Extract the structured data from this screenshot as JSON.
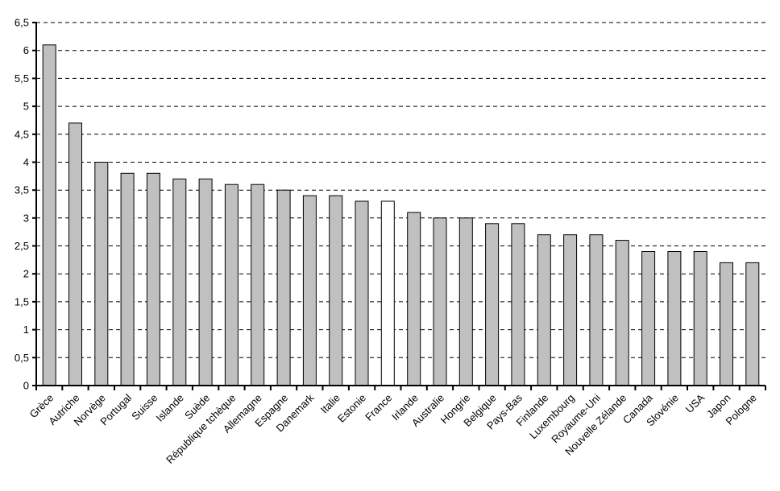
{
  "chart_data": {
    "type": "bar",
    "title": "",
    "xlabel": "",
    "ylabel": "",
    "legend": "none",
    "grid": "horizontal-dashed",
    "ylim": [
      0,
      6.5
    ],
    "ytick_step": 0.5,
    "ytick_labels": [
      "0",
      "0,5",
      "1",
      "1,5",
      "2",
      "2,5",
      "3",
      "3,5",
      "4",
      "4,5",
      "5",
      "5,5",
      "6",
      "6,5"
    ],
    "categories": [
      "Grèce",
      "Autriche",
      "Norvège",
      "Portugal",
      "Suisse",
      "Islande",
      "Suède",
      "République tchèque",
      "Allemagne",
      "Espagne",
      "Danemark",
      "Italie",
      "Estonie",
      "France",
      "Irlande",
      "Australie",
      "Hongrie",
      "Belgique",
      "Pays-Bas",
      "Finlande",
      "Luxembourg",
      "Royaume-Uni",
      "Nouvelle Zélande",
      "Canada",
      "Slovénie",
      "USA",
      "Japon",
      "Pologne"
    ],
    "values": [
      6.1,
      4.7,
      4.0,
      3.8,
      3.8,
      3.7,
      3.7,
      3.6,
      3.6,
      3.5,
      3.4,
      3.4,
      3.3,
      3.3,
      3.1,
      3.0,
      3.0,
      2.9,
      2.9,
      2.7,
      2.7,
      2.7,
      2.6,
      2.4,
      2.4,
      2.4,
      2.2,
      2.2
    ],
    "highlight_index": 13,
    "highlight_fill": "#FFFFFF",
    "bar_fill": "#C0C0C0",
    "bar_stroke": "#000000",
    "gridline_color": "#000000",
    "axis_color": "#000000"
  }
}
